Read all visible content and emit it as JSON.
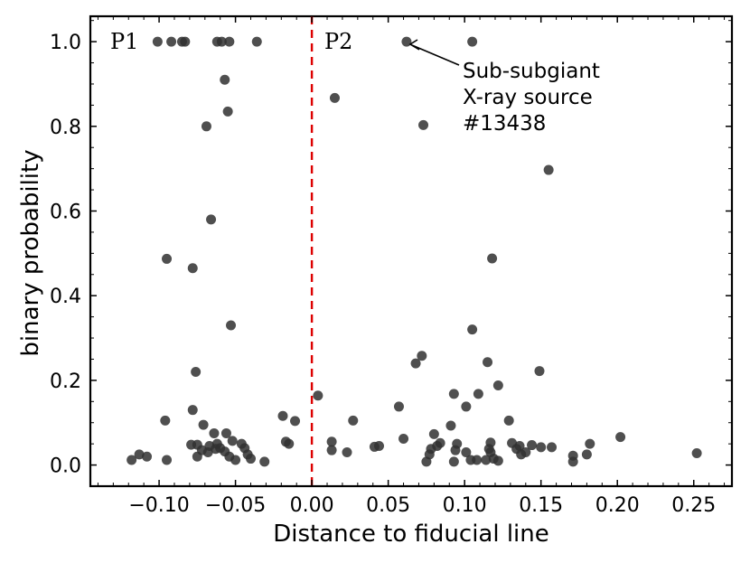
{
  "chart_data": {
    "type": "scatter",
    "title": "",
    "xlabel": "Distance to fiducial line",
    "ylabel": "binary probability",
    "xlim": [
      -0.145,
      0.275
    ],
    "ylim": [
      -0.05,
      1.06
    ],
    "xticks": [
      -0.1,
      -0.05,
      0.0,
      0.05,
      0.1,
      0.15,
      0.2,
      0.25
    ],
    "xtick_labels": [
      "−0.10",
      "−0.05",
      "0.00",
      "0.05",
      "0.10",
      "0.15",
      "0.20",
      "0.25"
    ],
    "yticks": [
      0.0,
      0.2,
      0.4,
      0.6,
      0.8,
      1.0
    ],
    "ytick_labels": [
      "0.0",
      "0.2",
      "0.4",
      "0.6",
      "0.8",
      "1.0"
    ],
    "grid": false,
    "divider": {
      "x": 0.0,
      "color": "#dd0000",
      "style": "dashed"
    },
    "panel_labels": [
      "P1",
      "P2"
    ],
    "annotation": {
      "lines": [
        "Sub-subgiant",
        "X-ray source",
        "#13438"
      ],
      "x": 0.062,
      "y": 1.0
    },
    "marker_color": "#303030",
    "points": [
      {
        "x": -0.101,
        "y": 1.0
      },
      {
        "x": -0.092,
        "y": 1.0
      },
      {
        "x": -0.085,
        "y": 1.0
      },
      {
        "x": -0.083,
        "y": 1.0
      },
      {
        "x": -0.062,
        "y": 1.0
      },
      {
        "x": -0.059,
        "y": 1.0
      },
      {
        "x": -0.054,
        "y": 1.0
      },
      {
        "x": -0.036,
        "y": 1.0
      },
      {
        "x": -0.057,
        "y": 0.91
      },
      {
        "x": -0.055,
        "y": 0.835
      },
      {
        "x": -0.069,
        "y": 0.8
      },
      {
        "x": -0.066,
        "y": 0.58
      },
      {
        "x": -0.095,
        "y": 0.487
      },
      {
        "x": -0.078,
        "y": 0.465
      },
      {
        "x": -0.053,
        "y": 0.33
      },
      {
        "x": -0.076,
        "y": 0.22
      },
      {
        "x": -0.078,
        "y": 0.13
      },
      {
        "x": -0.096,
        "y": 0.105
      },
      {
        "x": -0.071,
        "y": 0.095
      },
      {
        "x": -0.019,
        "y": 0.116
      },
      {
        "x": -0.011,
        "y": 0.104
      },
      {
        "x": -0.064,
        "y": 0.075
      },
      {
        "x": -0.056,
        "y": 0.075
      },
      {
        "x": -0.079,
        "y": 0.048
      },
      {
        "x": -0.075,
        "y": 0.048
      },
      {
        "x": -0.067,
        "y": 0.045
      },
      {
        "x": -0.062,
        "y": 0.05
      },
      {
        "x": -0.06,
        "y": 0.04
      },
      {
        "x": -0.052,
        "y": 0.057
      },
      {
        "x": -0.046,
        "y": 0.05
      },
      {
        "x": -0.044,
        "y": 0.04
      },
      {
        "x": -0.017,
        "y": 0.055
      },
      {
        "x": -0.015,
        "y": 0.05
      },
      {
        "x": -0.072,
        "y": 0.035
      },
      {
        "x": -0.068,
        "y": 0.03
      },
      {
        "x": -0.063,
        "y": 0.038
      },
      {
        "x": -0.075,
        "y": 0.02
      },
      {
        "x": -0.057,
        "y": 0.032
      },
      {
        "x": -0.054,
        "y": 0.02
      },
      {
        "x": -0.05,
        "y": 0.012
      },
      {
        "x": -0.042,
        "y": 0.025
      },
      {
        "x": -0.04,
        "y": 0.015
      },
      {
        "x": -0.031,
        "y": 0.008
      },
      {
        "x": -0.113,
        "y": 0.025
      },
      {
        "x": -0.108,
        "y": 0.02
      },
      {
        "x": -0.118,
        "y": 0.012
      },
      {
        "x": -0.095,
        "y": 0.012
      },
      {
        "x": 0.062,
        "y": 1.0
      },
      {
        "x": 0.105,
        "y": 1.0
      },
      {
        "x": 0.015,
        "y": 0.867
      },
      {
        "x": 0.073,
        "y": 0.803
      },
      {
        "x": 0.155,
        "y": 0.697
      },
      {
        "x": 0.118,
        "y": 0.488
      },
      {
        "x": 0.105,
        "y": 0.32
      },
      {
        "x": 0.072,
        "y": 0.258
      },
      {
        "x": 0.068,
        "y": 0.24
      },
      {
        "x": 0.115,
        "y": 0.243
      },
      {
        "x": 0.149,
        "y": 0.222
      },
      {
        "x": 0.122,
        "y": 0.188
      },
      {
        "x": 0.004,
        "y": 0.164
      },
      {
        "x": 0.093,
        "y": 0.168
      },
      {
        "x": 0.109,
        "y": 0.168
      },
      {
        "x": 0.101,
        "y": 0.138
      },
      {
        "x": 0.057,
        "y": 0.138
      },
      {
        "x": 0.027,
        "y": 0.105
      },
      {
        "x": 0.129,
        "y": 0.105
      },
      {
        "x": 0.091,
        "y": 0.093
      },
      {
        "x": 0.08,
        "y": 0.073
      },
      {
        "x": 0.06,
        "y": 0.062
      },
      {
        "x": 0.013,
        "y": 0.055
      },
      {
        "x": 0.202,
        "y": 0.066
      },
      {
        "x": 0.084,
        "y": 0.052
      },
      {
        "x": 0.095,
        "y": 0.05
      },
      {
        "x": 0.117,
        "y": 0.053
      },
      {
        "x": 0.131,
        "y": 0.052
      },
      {
        "x": 0.136,
        "y": 0.045
      },
      {
        "x": 0.144,
        "y": 0.047
      },
      {
        "x": 0.15,
        "y": 0.042
      },
      {
        "x": 0.157,
        "y": 0.042
      },
      {
        "x": 0.182,
        "y": 0.05
      },
      {
        "x": 0.041,
        "y": 0.043
      },
      {
        "x": 0.044,
        "y": 0.045
      },
      {
        "x": 0.082,
        "y": 0.045
      },
      {
        "x": 0.013,
        "y": 0.035
      },
      {
        "x": 0.023,
        "y": 0.03
      },
      {
        "x": 0.078,
        "y": 0.038
      },
      {
        "x": 0.077,
        "y": 0.025
      },
      {
        "x": 0.094,
        "y": 0.035
      },
      {
        "x": 0.101,
        "y": 0.03
      },
      {
        "x": 0.116,
        "y": 0.038
      },
      {
        "x": 0.117,
        "y": 0.03
      },
      {
        "x": 0.14,
        "y": 0.03
      },
      {
        "x": 0.134,
        "y": 0.038
      },
      {
        "x": 0.137,
        "y": 0.025
      },
      {
        "x": 0.171,
        "y": 0.022
      },
      {
        "x": 0.18,
        "y": 0.025
      },
      {
        "x": 0.252,
        "y": 0.028
      },
      {
        "x": 0.075,
        "y": 0.008
      },
      {
        "x": 0.093,
        "y": 0.008
      },
      {
        "x": 0.104,
        "y": 0.012
      },
      {
        "x": 0.108,
        "y": 0.012
      },
      {
        "x": 0.114,
        "y": 0.012
      },
      {
        "x": 0.119,
        "y": 0.015
      },
      {
        "x": 0.122,
        "y": 0.01
      },
      {
        "x": 0.171,
        "y": 0.008
      }
    ]
  }
}
